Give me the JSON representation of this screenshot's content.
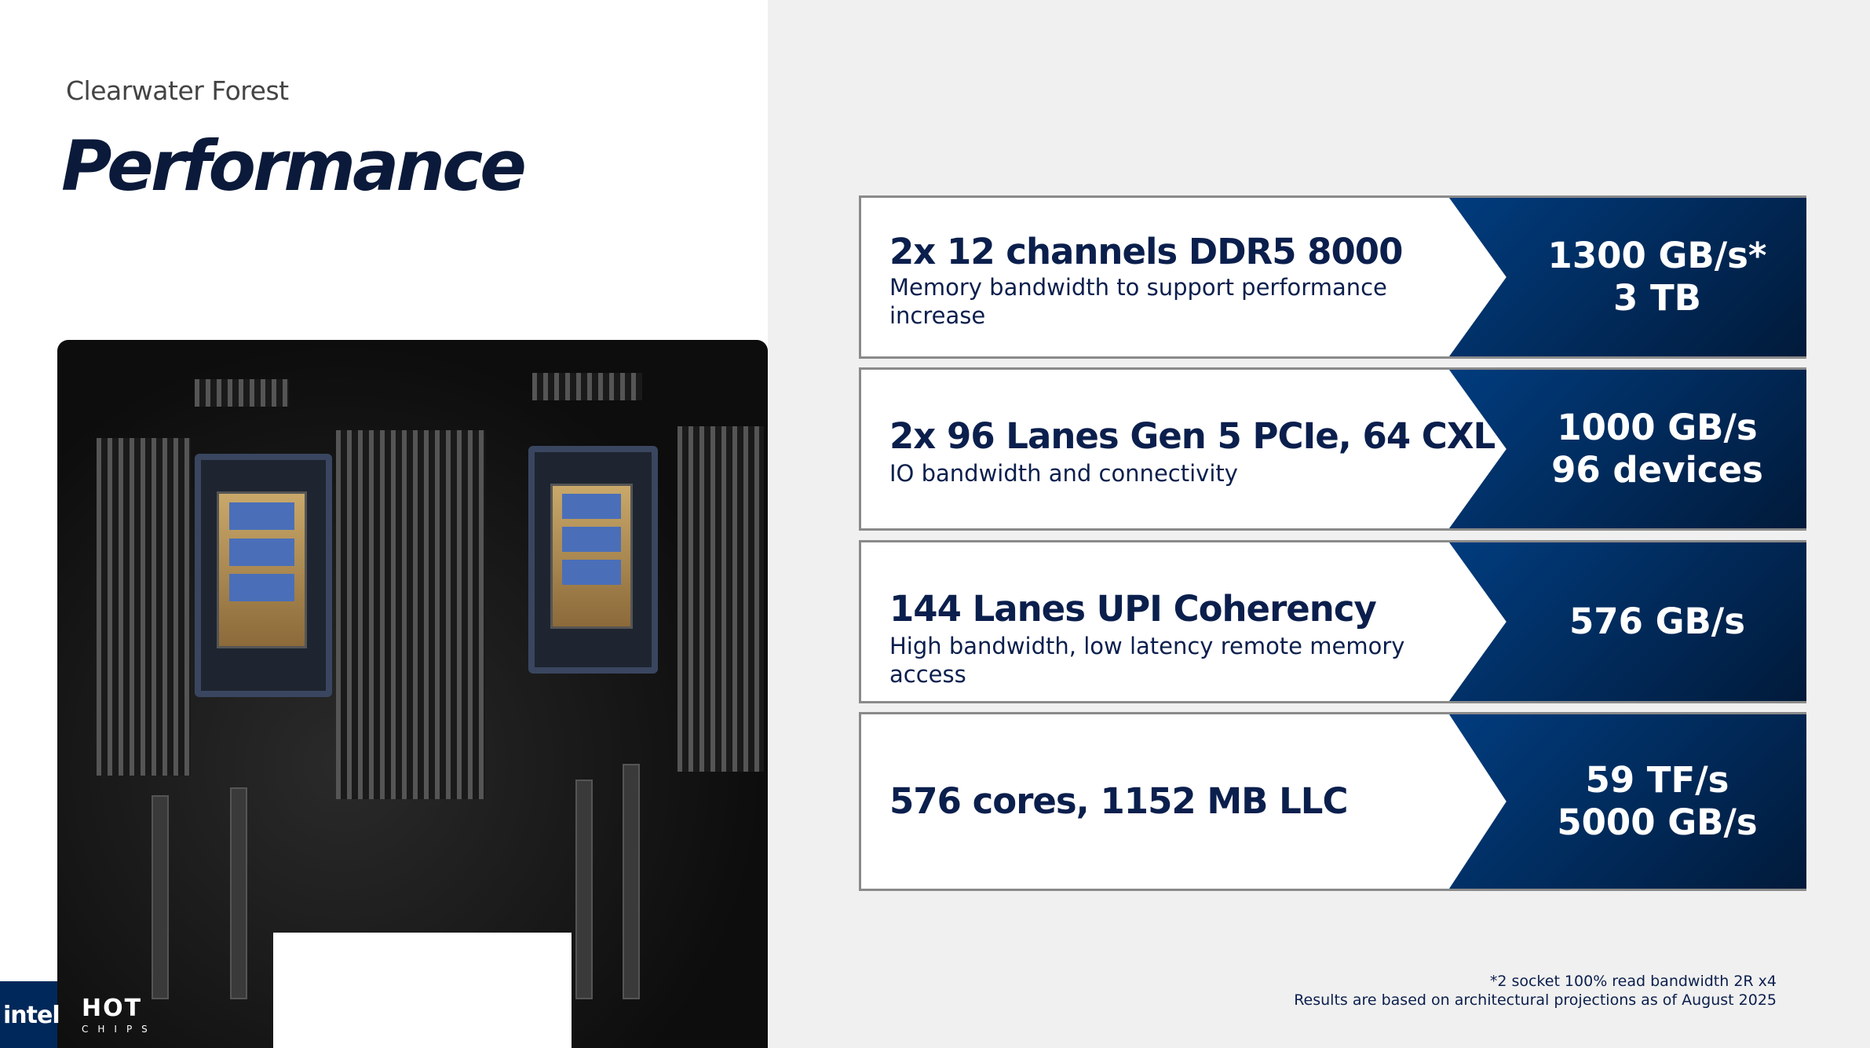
{
  "header": {
    "subtitle": "Clearwater Forest",
    "title": "Performance"
  },
  "cards": [
    {
      "heading": "2x 12 channels DDR5 8000",
      "description": "Memory bandwidth to support performance increase",
      "values": [
        "1300 GB/s*",
        "3 TB"
      ]
    },
    {
      "heading": "2x 96 Lanes Gen 5 PCIe, 64 CXL",
      "description": "IO bandwidth and connectivity",
      "values": [
        "1000 GB/s",
        "96 devices"
      ]
    },
    {
      "heading": "144 Lanes UPI Coherency",
      "description": "High bandwidth, low latency remote memory access",
      "values": [
        "576 GB/s"
      ]
    },
    {
      "heading": "576 cores, 1152 MB LLC",
      "description": "",
      "values": [
        "59 TF/s",
        "5000 GB/s"
      ]
    }
  ],
  "footnote": [
    "*2 socket 100% read bandwidth 2R x4",
    "Results are based on architectural projections as of August 2025"
  ],
  "logos": {
    "intel": "intel",
    "hotchips": "HOT CHIPS"
  },
  "colors": {
    "navy": "#013c7e",
    "text": "#0b1f4d"
  }
}
